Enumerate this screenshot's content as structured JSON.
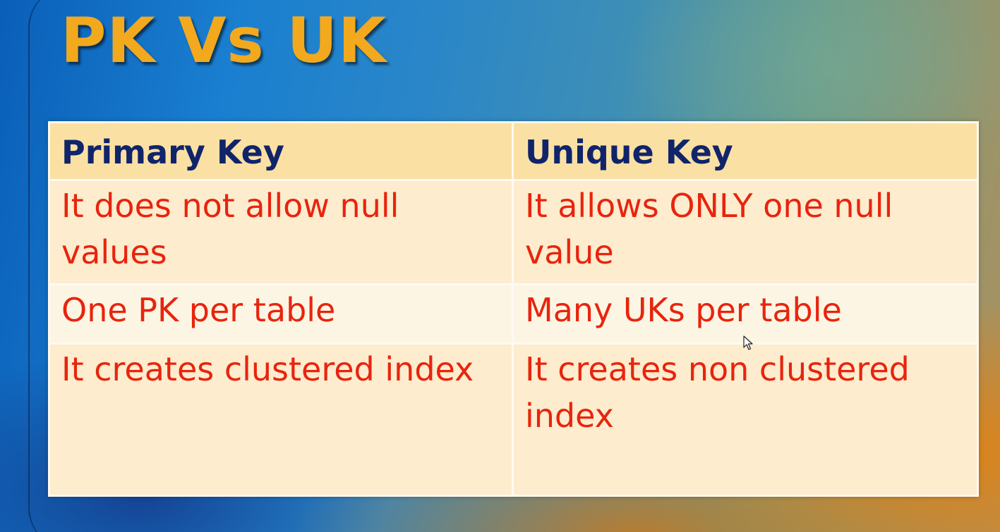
{
  "slide": {
    "title": "PK Vs UK"
  },
  "table": {
    "headers": [
      "Primary Key",
      "Unique Key"
    ],
    "rows": [
      [
        "It does not allow null values",
        "It allows ONLY one null value"
      ],
      [
        "One PK per table",
        "Many UKs per table"
      ],
      [
        "It creates clustered index",
        "It creates non clustered index"
      ]
    ]
  },
  "colors": {
    "title": "#f2a91e",
    "header_text": "#10246a",
    "body_text": "#e8240e",
    "header_bg": "#fbe0a4",
    "row_bg": "#fdecce"
  },
  "icons": {
    "cursor": "mouse-pointer-icon"
  }
}
